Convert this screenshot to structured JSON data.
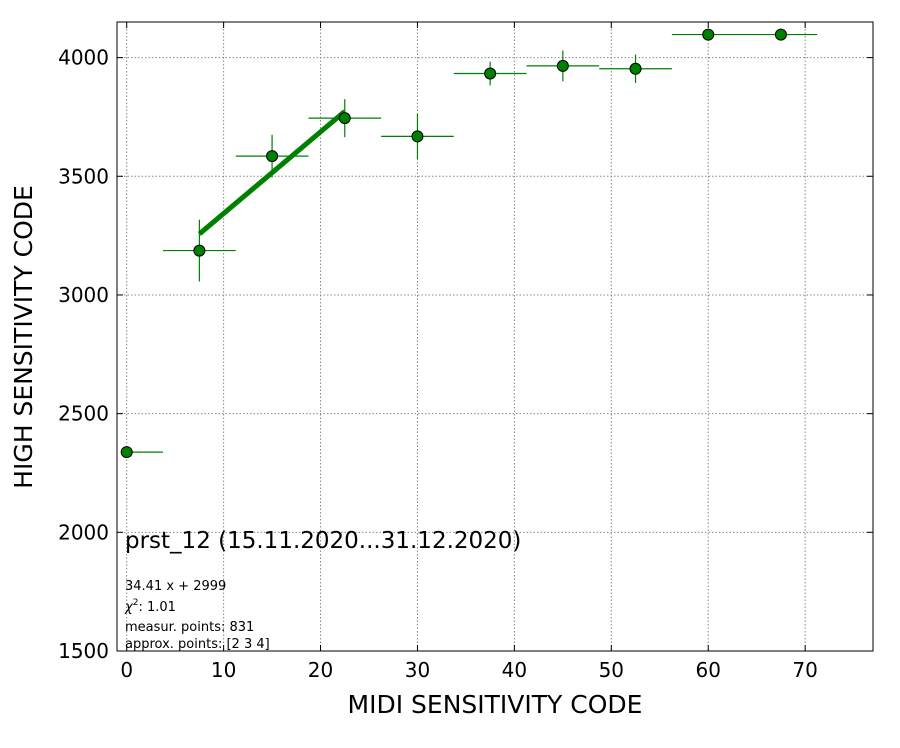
{
  "chart_data": {
    "type": "scatter",
    "xlabel": "MIDI SENSITIVITY CODE",
    "ylabel": "HIGH SENSITIVITY CODE",
    "xlim": [
      -1,
      77
    ],
    "ylim": [
      1500,
      4150
    ],
    "x_ticks": [
      0,
      10,
      20,
      30,
      40,
      50,
      60,
      70
    ],
    "y_ticks": [
      1500,
      2000,
      2500,
      3000,
      3500,
      4000
    ],
    "grid": true,
    "marker_color": "#008000",
    "marker_edge": "#000000",
    "errorbar_color": "#008000",
    "fit_color": "#008000",
    "points": [
      {
        "x": 0,
        "y": 2338,
        "xerr": [
          0,
          3.75
        ],
        "yerr": 0
      },
      {
        "x": 7.5,
        "y": 3187,
        "xerr": 3.75,
        "yerr": 130
      },
      {
        "x": 15,
        "y": 3585,
        "xerr": 3.75,
        "yerr": 90
      },
      {
        "x": 22.5,
        "y": 3745,
        "xerr": 3.75,
        "yerr": 80
      },
      {
        "x": 30,
        "y": 3668,
        "xerr": 3.75,
        "yerr": 95
      },
      {
        "x": 37.5,
        "y": 3933,
        "xerr": 3.75,
        "yerr": 50
      },
      {
        "x": 45,
        "y": 3965,
        "xerr": 3.75,
        "yerr": 65
      },
      {
        "x": 52.5,
        "y": 3953,
        "xerr": 3.75,
        "yerr": 60
      },
      {
        "x": 60,
        "y": 4097,
        "xerr": 3.75,
        "yerr": 0
      },
      {
        "x": 67.5,
        "y": 4097,
        "xerr": 3.75,
        "yerr": 0
      }
    ],
    "fit_line": {
      "slope": 34.41,
      "intercept": 2999,
      "x_range": [
        7.5,
        22.5
      ]
    },
    "annotations": {
      "title": "prst_12 (15.11.2020...31.12.2020)",
      "fit_equation": "34.41 x + 2999",
      "chi2_symbol": "χ",
      "chi2_sup": "2",
      "chi2_value": ": 1.01",
      "measur_points": "measur. points: 831",
      "approx_points": "approx. points: [2 3 4]"
    }
  }
}
